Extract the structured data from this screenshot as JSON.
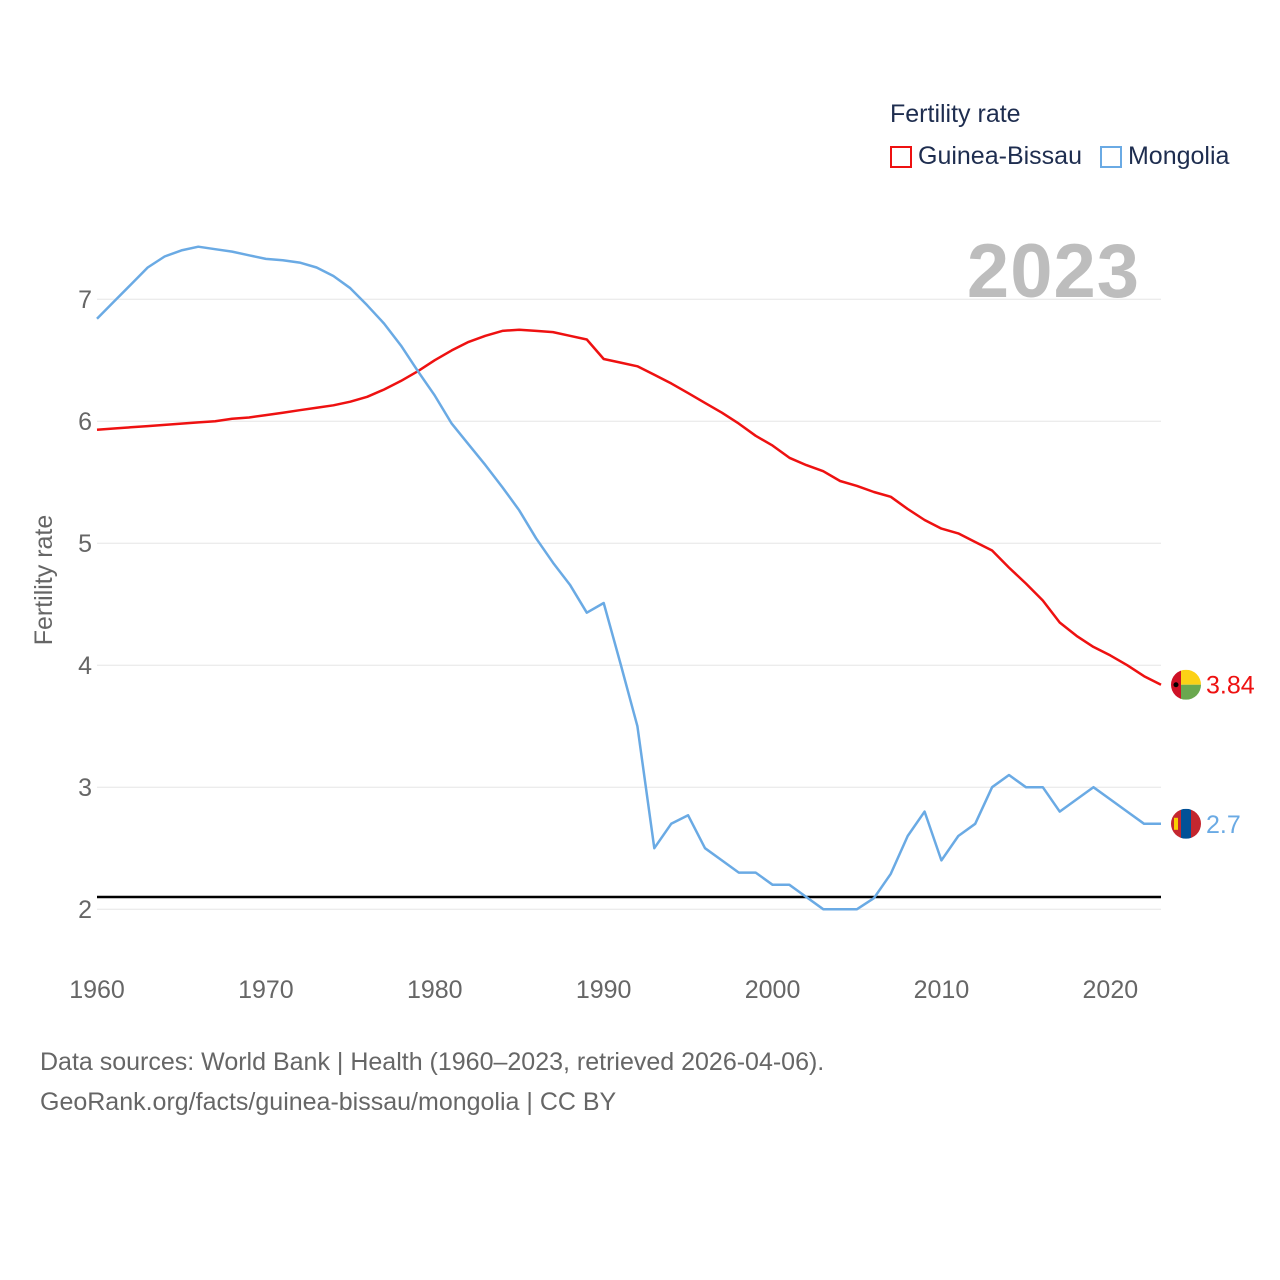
{
  "legend": {
    "title": "Fertility rate",
    "items": [
      {
        "label": "Guinea-Bissau",
        "color": "#ee1111"
      },
      {
        "label": "Mongolia",
        "color": "#6aaae4"
      }
    ]
  },
  "year_label": "2023",
  "footer": {
    "line1": "Data sources: World Bank | Health (1960–2023, retrieved 2026-04-06).",
    "line2": "GeoRank.org/facts/guinea-bissau/mongolia | CC BY"
  },
  "chart_data": {
    "type": "line",
    "title": "",
    "xlabel": "",
    "ylabel": "Fertility rate",
    "xlim": [
      1960,
      2023
    ],
    "ylim": [
      1.6,
      7.6
    ],
    "xticks": [
      "1960",
      "1970",
      "1980",
      "1990",
      "2000",
      "2010",
      "2020"
    ],
    "yticks": [
      "2",
      "3",
      "4",
      "5",
      "6",
      "7"
    ],
    "reference_line": 2.1,
    "x": [
      1960,
      1961,
      1962,
      1963,
      1964,
      1965,
      1966,
      1967,
      1968,
      1969,
      1970,
      1971,
      1972,
      1973,
      1974,
      1975,
      1976,
      1977,
      1978,
      1979,
      1980,
      1981,
      1982,
      1983,
      1984,
      1985,
      1986,
      1987,
      1988,
      1989,
      1990,
      1991,
      1992,
      1993,
      1994,
      1995,
      1996,
      1997,
      1998,
      1999,
      2000,
      2001,
      2002,
      2003,
      2004,
      2005,
      2006,
      2007,
      2008,
      2009,
      2010,
      2011,
      2012,
      2013,
      2014,
      2015,
      2016,
      2017,
      2018,
      2019,
      2020,
      2021,
      2022,
      2023
    ],
    "series": [
      {
        "name": "Guinea-Bissau",
        "color": "#ee1111",
        "end_label": "3.84",
        "values": [
          5.93,
          5.94,
          5.95,
          5.96,
          5.97,
          5.98,
          5.99,
          6.0,
          6.02,
          6.03,
          6.05,
          6.07,
          6.09,
          6.11,
          6.13,
          6.16,
          6.2,
          6.26,
          6.33,
          6.41,
          6.5,
          6.58,
          6.65,
          6.7,
          6.74,
          6.75,
          6.74,
          6.73,
          6.7,
          6.67,
          6.51,
          6.48,
          6.45,
          6.38,
          6.31,
          6.23,
          6.15,
          6.07,
          5.98,
          5.88,
          5.8,
          5.7,
          5.64,
          5.59,
          5.51,
          5.47,
          5.42,
          5.38,
          5.28,
          5.19,
          5.12,
          5.08,
          5.01,
          4.94,
          4.8,
          4.67,
          4.53,
          4.35,
          4.24,
          4.15,
          4.08,
          4.0,
          3.91,
          3.84
        ]
      },
      {
        "name": "Mongolia",
        "color": "#6aaae4",
        "end_label": "2.7",
        "values": [
          6.84,
          6.98,
          7.12,
          7.26,
          7.35,
          7.4,
          7.43,
          7.41,
          7.39,
          7.36,
          7.33,
          7.32,
          7.3,
          7.26,
          7.19,
          7.09,
          6.95,
          6.8,
          6.62,
          6.41,
          6.21,
          5.98,
          5.81,
          5.64,
          5.46,
          5.27,
          5.04,
          4.84,
          4.66,
          4.43,
          4.51,
          4.01,
          3.5,
          2.5,
          2.7,
          2.77,
          2.5,
          2.4,
          2.3,
          2.3,
          2.2,
          2.2,
          2.1,
          2.0,
          2.0,
          2.0,
          2.09,
          2.29,
          2.6,
          2.8,
          2.4,
          2.6,
          2.7,
          3.0,
          3.1,
          3.0,
          3.0,
          2.8,
          2.9,
          3.0,
          2.9,
          2.8,
          2.7,
          2.7
        ]
      }
    ]
  }
}
